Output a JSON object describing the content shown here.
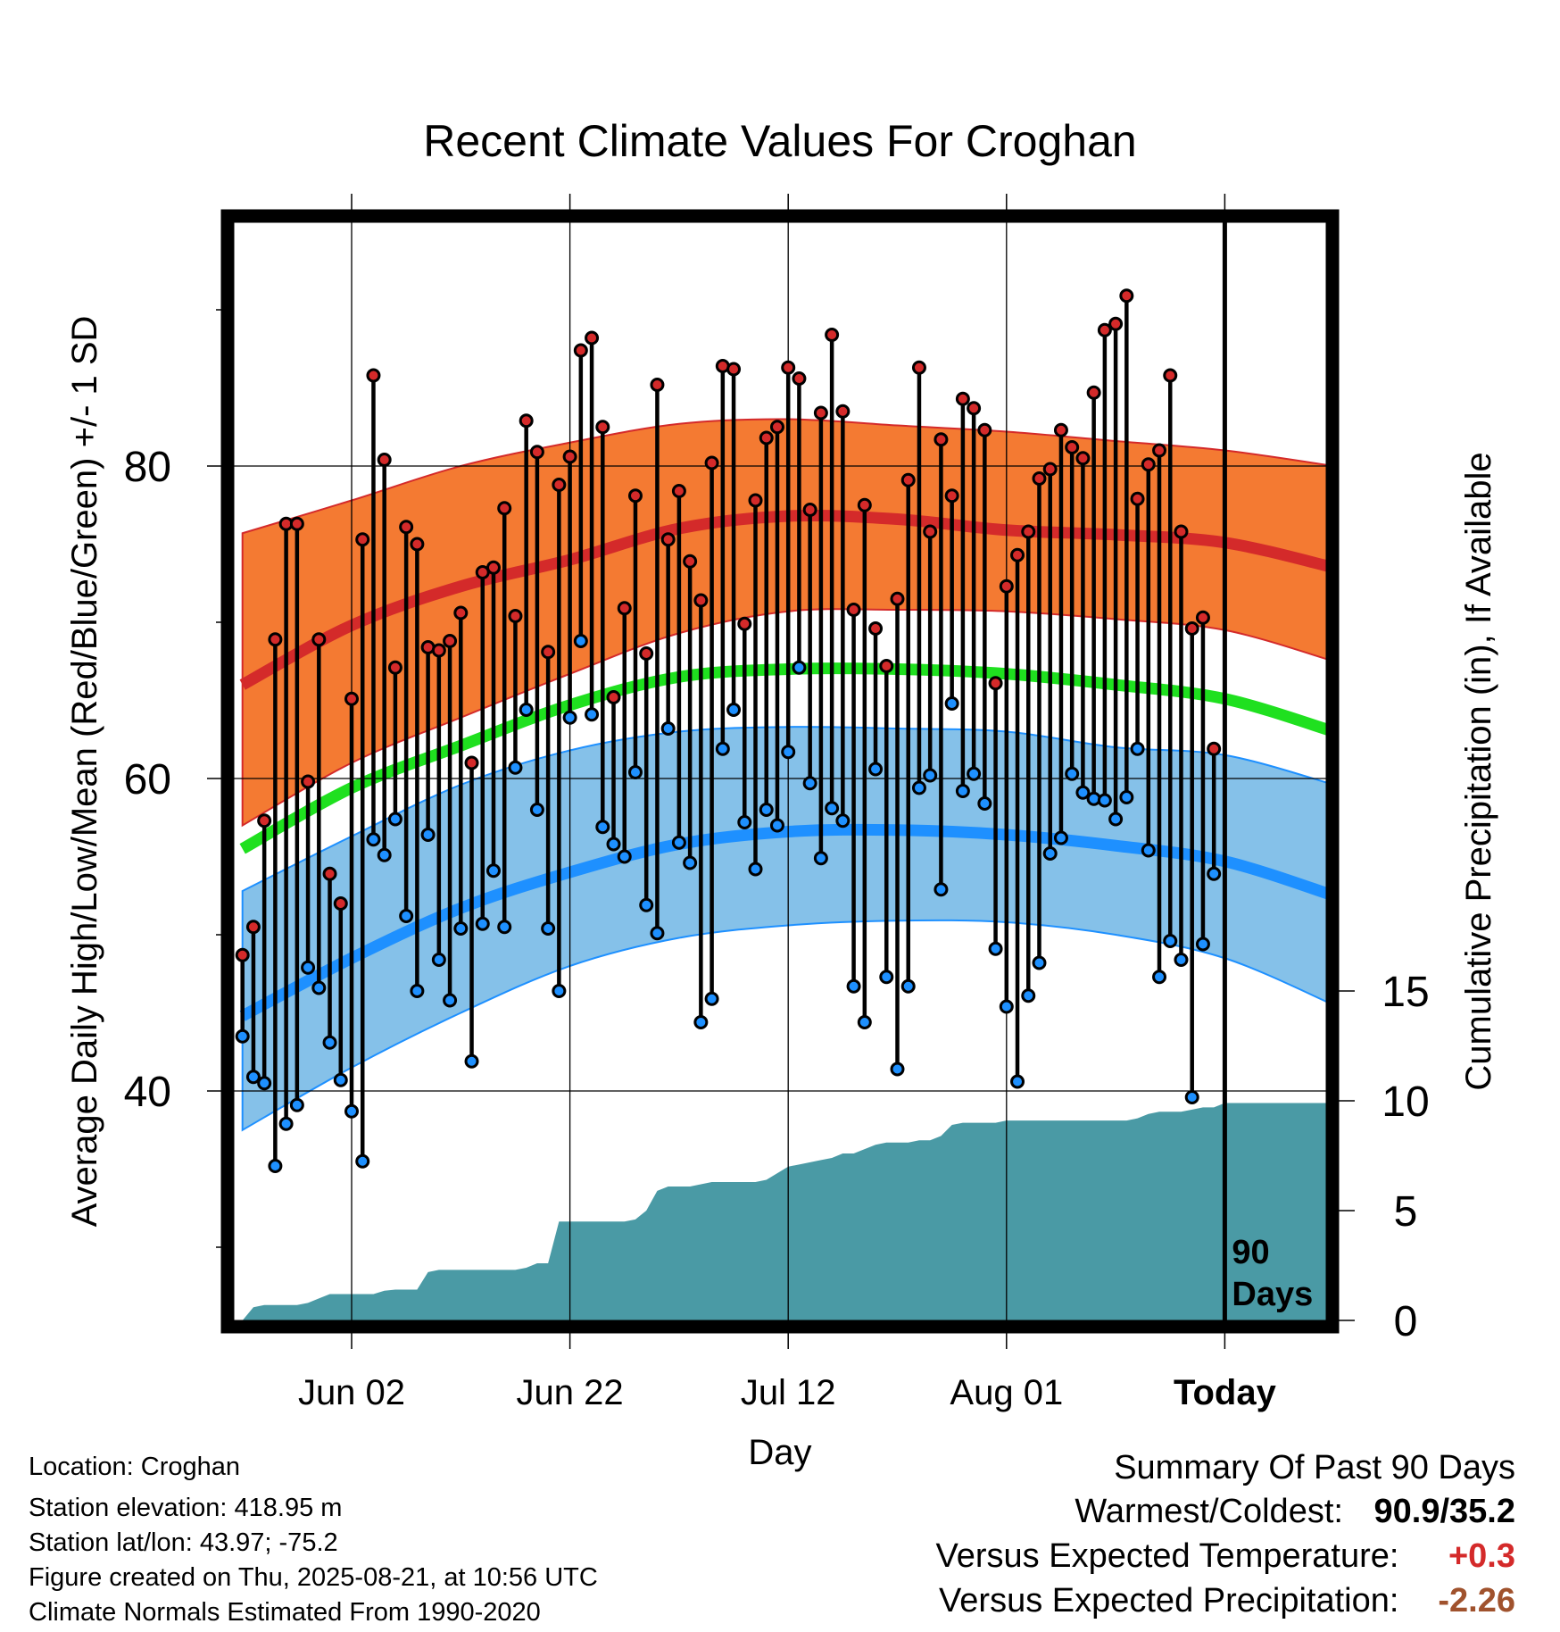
{
  "chart_data": {
    "type": "line",
    "title": "Recent Climate Values For Croghan",
    "xlabel": "Day",
    "ylabel": "Average Daily High/Low/Mean (Red/Blue/Green) +/- 1 SD",
    "y2label": "Cumulative Precipitation (in), If Available",
    "ylim": [
      25,
      97
    ],
    "y2lim": [
      0,
      20
    ],
    "xlim": [
      -10,
      90
    ],
    "yticks": [
      40,
      60,
      80
    ],
    "y2ticks": [
      0,
      5,
      10,
      15
    ],
    "xticks": [
      {
        "day": 0,
        "label": "Jun 02"
      },
      {
        "day": 20,
        "label": "Jun 22"
      },
      {
        "day": 40,
        "label": "Jul 12"
      },
      {
        "day": 60,
        "label": "Aug 01"
      },
      {
        "day": 80,
        "label": "Today"
      }
    ],
    "today_marker": {
      "day": 80,
      "label_top": "90",
      "label_bottom": "Days"
    },
    "grid": true,
    "colors": {
      "high_band": "#f47a32",
      "high_line": "#d42a2a",
      "low_band": "#85c1e9",
      "low_line": "#1e90ff",
      "mean_line": "#1fe01f",
      "precip": "#4a9aa5",
      "high_dot": "#d42a2a",
      "low_dot": "#1e90ff"
    },
    "normals": {
      "days": [
        -10,
        0,
        10,
        20,
        30,
        40,
        50,
        60,
        70,
        80,
        90
      ],
      "high_mean": [
        66.0,
        69.8,
        72.3,
        74.0,
        76.0,
        76.8,
        76.6,
        75.9,
        75.6,
        75.1,
        73.5
      ],
      "high_upper": [
        75.7,
        77.8,
        80.0,
        81.5,
        82.7,
        83.0,
        82.6,
        82.2,
        81.6,
        81.0,
        80.0
      ],
      "high_lower": [
        57.0,
        61.0,
        63.9,
        66.7,
        69.3,
        70.7,
        70.8,
        70.7,
        70.2,
        69.5,
        67.5
      ],
      "mean": [
        55.5,
        59.4,
        62.1,
        64.7,
        66.5,
        67.0,
        67.0,
        66.7,
        66.0,
        65.1,
        63.0
      ],
      "low_mean": [
        44.8,
        48.5,
        51.7,
        54.0,
        55.8,
        56.6,
        56.7,
        56.4,
        55.7,
        54.7,
        52.5
      ],
      "low_upper": [
        52.8,
        56.3,
        59.6,
        61.8,
        63.0,
        63.3,
        63.2,
        63.0,
        62.0,
        61.5,
        59.6
      ],
      "low_lower": [
        37.5,
        41.5,
        45.0,
        48.0,
        49.8,
        50.6,
        50.9,
        50.8,
        50.0,
        48.5,
        45.5
      ]
    },
    "daily": {
      "days": [
        -10,
        -9,
        -8,
        -7,
        -6,
        -5,
        -4,
        -3,
        -2,
        -1,
        0,
        1,
        2,
        3,
        4,
        5,
        6,
        7,
        8,
        9,
        10,
        11,
        12,
        13,
        14,
        15,
        16,
        17,
        18,
        19,
        20,
        21,
        22,
        23,
        24,
        25,
        26,
        27,
        28,
        29,
        30,
        31,
        32,
        33,
        34,
        35,
        36,
        37,
        38,
        39,
        40,
        41,
        42,
        43,
        44,
        45,
        46,
        47,
        48,
        49,
        50,
        51,
        52,
        53,
        54,
        55,
        56,
        57,
        58,
        59,
        60,
        61,
        62,
        63,
        64,
        65,
        66,
        67,
        68,
        69,
        70,
        71,
        72,
        73,
        74,
        75,
        76,
        77,
        78,
        79
      ],
      "high": [
        48.7,
        50.5,
        57.3,
        68.9,
        76.3,
        76.3,
        59.8,
        68.9,
        53.9,
        52.0,
        65.1,
        75.3,
        85.8,
        80.4,
        67.1,
        76.1,
        75.0,
        68.4,
        68.2,
        68.8,
        70.6,
        61.0,
        73.2,
        73.5,
        77.3,
        70.4,
        82.9,
        80.9,
        68.1,
        78.8,
        80.6,
        87.4,
        88.2,
        82.5,
        65.2,
        70.9,
        78.1,
        68.0,
        85.2,
        75.3,
        78.4,
        73.9,
        71.4,
        80.2,
        86.4,
        86.2,
        69.9,
        77.8,
        81.8,
        82.5,
        86.3,
        85.6,
        77.2,
        83.4,
        88.4,
        83.5,
        70.8,
        77.5,
        69.6,
        67.2,
        71.5,
        79.1,
        86.3,
        75.8,
        81.7,
        78.1,
        84.3,
        83.7,
        82.3,
        66.1,
        72.3,
        74.3,
        75.8,
        79.2,
        79.8,
        82.3,
        81.2,
        80.5,
        84.7,
        88.7,
        89.1,
        90.9,
        77.9,
        80.1,
        81.0,
        85.8,
        75.8,
        69.6,
        70.3,
        61.9
      ],
      "low": [
        43.5,
        40.9,
        40.5,
        35.2,
        37.9,
        39.1,
        47.9,
        46.6,
        43.1,
        40.7,
        38.7,
        35.5,
        56.1,
        55.1,
        57.4,
        51.2,
        46.4,
        56.4,
        48.4,
        45.8,
        50.4,
        41.9,
        50.7,
        54.1,
        50.5,
        60.7,
        64.4,
        58.0,
        50.4,
        46.4,
        63.9,
        68.8,
        64.1,
        56.9,
        55.8,
        55.0,
        60.4,
        51.9,
        50.1,
        63.2,
        55.9,
        54.6,
        44.4,
        45.9,
        61.9,
        64.4,
        57.2,
        54.2,
        58.0,
        57.0,
        61.7,
        67.1,
        59.7,
        54.9,
        58.1,
        57.3,
        46.7,
        44.4,
        60.6,
        47.3,
        41.4,
        46.7,
        59.4,
        60.2,
        52.9,
        64.8,
        59.2,
        60.3,
        58.4,
        49.1,
        45.4,
        40.6,
        46.1,
        48.2,
        55.2,
        56.2,
        60.3,
        59.1,
        58.7,
        58.6,
        57.4,
        58.8,
        61.9,
        55.4,
        47.3,
        49.6,
        48.4,
        39.6,
        49.4,
        53.9
      ]
    },
    "precip": {
      "days": [
        -10,
        -9,
        -8,
        -5,
        -4,
        -3,
        -2,
        0,
        2,
        3,
        4,
        6,
        7,
        8,
        10,
        12,
        15,
        16,
        17,
        18,
        19,
        20,
        25,
        26,
        27,
        28,
        29,
        30,
        31,
        32,
        33,
        34,
        35,
        36,
        37,
        38,
        39,
        40,
        41,
        42,
        43,
        44,
        45,
        46,
        47,
        48,
        49,
        50,
        51,
        52,
        53,
        54,
        55,
        56,
        57,
        58,
        59,
        60,
        63,
        66,
        67,
        68,
        69,
        70,
        71,
        72,
        73,
        74,
        75,
        76,
        77,
        78,
        79,
        80,
        90
      ],
      "cum": [
        0.0,
        0.6,
        0.7,
        0.7,
        0.8,
        1.0,
        1.2,
        1.2,
        1.2,
        1.35,
        1.4,
        1.4,
        2.2,
        2.3,
        2.3,
        2.3,
        2.3,
        2.4,
        2.6,
        2.6,
        4.5,
        4.5,
        4.5,
        4.6,
        5.0,
        5.9,
        6.1,
        6.1,
        6.1,
        6.2,
        6.3,
        6.3,
        6.3,
        6.3,
        6.3,
        6.4,
        6.7,
        7.0,
        7.1,
        7.2,
        7.3,
        7.4,
        7.6,
        7.6,
        7.8,
        8.0,
        8.1,
        8.1,
        8.1,
        8.2,
        8.2,
        8.4,
        8.9,
        9.0,
        9.0,
        9.0,
        9.0,
        9.1,
        9.1,
        9.1,
        9.1,
        9.1,
        9.1,
        9.1,
        9.1,
        9.2,
        9.4,
        9.5,
        9.5,
        9.5,
        9.6,
        9.7,
        9.7,
        9.9,
        9.9
      ]
    }
  },
  "info": {
    "location": "Location: Croghan",
    "elevation": "Station elevation: 418.95 m",
    "latlon": "Station lat/lon: 43.97; -75.2",
    "created": "Figure created on Thu, 2025-08-21, at 10:56 UTC",
    "normals": "Climate Normals Estimated From 1990-2020"
  },
  "summary": {
    "title": "Summary Of Past 90 Days",
    "warmest_label": "Warmest/Coldest:",
    "warmest_value": "90.9/35.2",
    "temp_label": "Versus Expected Temperature:",
    "temp_value": "+0.3",
    "temp_color": "#d42a2a",
    "precip_label": "Versus Expected Precipitation:",
    "precip_value": "-2.26",
    "precip_color": "#a0522d"
  }
}
